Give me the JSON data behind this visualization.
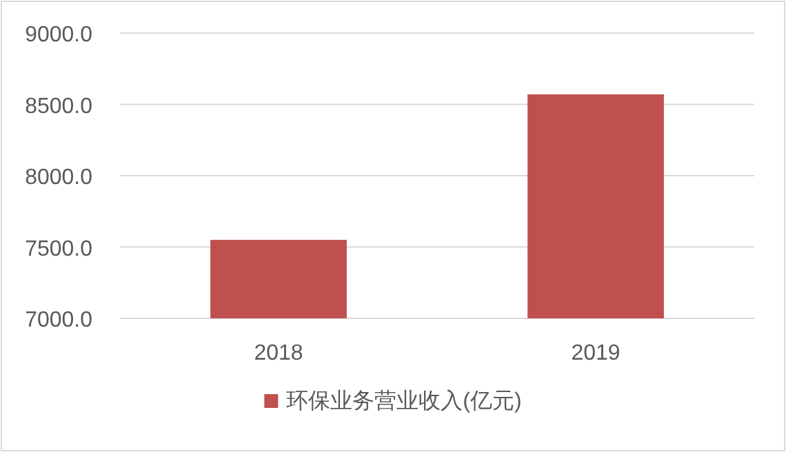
{
  "chart_data": {
    "type": "bar",
    "categories": [
      "2018",
      "2019"
    ],
    "series": [
      {
        "name": "环保业务营业收入(亿元)",
        "color": "#c0504d",
        "values": [
          7550,
          8570
        ]
      }
    ],
    "ylim": [
      7000,
      9000
    ],
    "yticks": [
      {
        "value": 7000,
        "label": "7000.0"
      },
      {
        "value": 7500,
        "label": "7500.0"
      },
      {
        "value": 8000,
        "label": "8000.0"
      },
      {
        "value": 8500,
        "label": "8500.0"
      },
      {
        "value": 9000,
        "label": "9000.0"
      }
    ],
    "grid": "y",
    "legend": "bottom"
  }
}
